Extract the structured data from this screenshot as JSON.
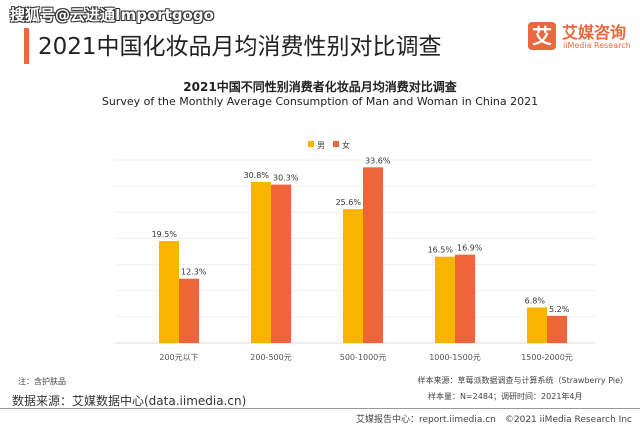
{
  "watermark": "搜狐号@云进通Importgogo",
  "header": {
    "title": "2021中国化妆品月均消费性别对比调查",
    "logo_cn": "艾媒咨询",
    "logo_en": "iiMedia Research",
    "logo_mark": "艾"
  },
  "chart_data": {
    "type": "bar",
    "title": "2021中国不同性别消费者化妆品月均消费对比调查",
    "subtitle": "Survey of the Monthly Average Consumption of Man and Woman in China 2021",
    "categories": [
      "200元以下",
      "200-500元",
      "500-1000元",
      "1000-1500元",
      "1500-2000元"
    ],
    "series": [
      {
        "name": "男",
        "values": [
          19.5,
          30.8,
          25.6,
          16.5,
          6.8
        ],
        "labels": [
          "19.5%",
          "30.8%",
          "25.6%",
          "16.5%",
          "6.8%"
        ],
        "color": "#F7B500"
      },
      {
        "name": "女",
        "values": [
          12.3,
          30.3,
          33.6,
          16.9,
          5.2
        ],
        "labels": [
          "12.3%",
          "30.3%",
          "33.6%",
          "16.9%",
          "5.2%"
        ],
        "color": "#F0643A"
      }
    ],
    "ylim": [
      0,
      35
    ],
    "grid": true,
    "legend": "top-center",
    "unit": "%"
  },
  "footer": {
    "note": "注：含护肤品",
    "source": "数据来源：艾媒数据中心(data.iimedia.cn)",
    "sample_source": "样本来源：草莓派数据调查与计算系统（Strawberry Pie）",
    "sample_size": "样本量：N=2484；调研时间：2021年4月",
    "copyright": "艾媒报告中心：report.iimedia.cn　©2021  iiMedia Research  Inc"
  }
}
